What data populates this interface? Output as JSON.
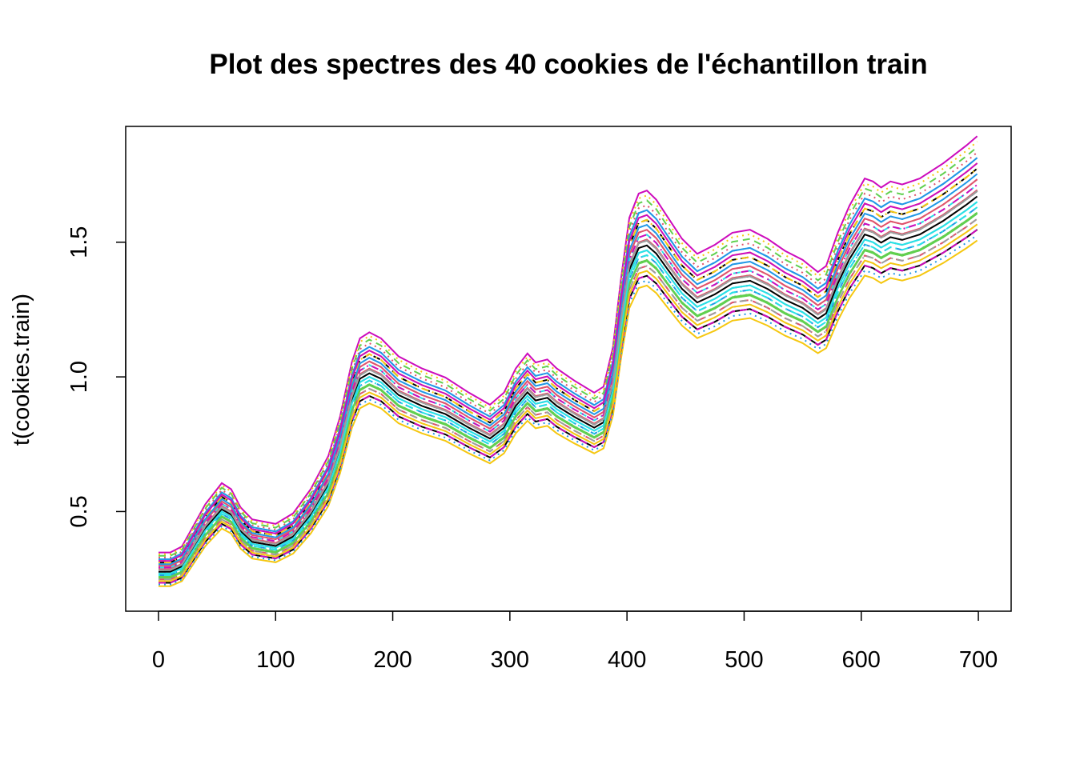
{
  "chart_data": {
    "type": "line",
    "title": "Plot des spectres des 40  cookies de l'échantillon train",
    "xlabel": "",
    "ylabel": "t(cookies.train)",
    "xlim": [
      -28,
      728
    ],
    "ylim": [
      0.13,
      1.93
    ],
    "x_ticks": [
      0,
      100,
      200,
      300,
      400,
      500,
      600,
      700
    ],
    "x_tick_labels": [
      "0",
      "100",
      "200",
      "300",
      "400",
      "500",
      "600",
      "700"
    ],
    "y_ticks": [
      0.5,
      1.0,
      1.5
    ],
    "y_tick_labels": [
      "0.5",
      "1.0",
      "1.5"
    ],
    "grid": false,
    "legend": "none",
    "n_series": 40,
    "palette": [
      "#000000",
      "#DF536B",
      "#61D04F",
      "#2297E6",
      "#28E2E5",
      "#CD0BBC",
      "#F5C710",
      "#9E9E9E"
    ],
    "line_styles": [
      "solid",
      "dashed",
      "dotted",
      "dotdash"
    ],
    "base_curve_x": [
      0,
      10,
      20,
      30,
      40,
      54,
      62,
      70,
      80,
      100,
      115,
      130,
      145,
      155,
      165,
      172,
      180,
      190,
      205,
      225,
      245,
      265,
      283,
      295,
      305,
      315,
      322,
      332,
      340,
      355,
      372,
      380,
      388,
      395,
      402,
      410,
      417,
      425,
      435,
      447,
      460,
      475,
      490,
      505,
      520,
      535,
      550,
      563,
      570,
      580,
      590,
      603,
      610,
      617,
      625,
      635,
      650,
      670,
      690,
      699
    ],
    "base_curve_y": [
      0.27,
      0.27,
      0.29,
      0.36,
      0.43,
      0.5,
      0.48,
      0.42,
      0.38,
      0.365,
      0.4,
      0.48,
      0.59,
      0.72,
      0.9,
      0.98,
      1.0,
      0.98,
      0.92,
      0.88,
      0.85,
      0.8,
      0.76,
      0.8,
      0.88,
      0.93,
      0.9,
      0.91,
      0.88,
      0.84,
      0.8,
      0.82,
      0.95,
      1.18,
      1.38,
      1.46,
      1.47,
      1.44,
      1.38,
      1.31,
      1.26,
      1.29,
      1.33,
      1.34,
      1.31,
      1.27,
      1.24,
      1.2,
      1.22,
      1.33,
      1.42,
      1.51,
      1.5,
      1.48,
      1.5,
      1.49,
      1.51,
      1.56,
      1.62,
      1.65
    ],
    "series_offset": [
      -0.06,
      0.05,
      -0.03,
      0.09,
      0.0,
      0.13,
      -0.08,
      0.02,
      0.07,
      -0.04,
      0.11,
      -0.01,
      0.04,
      -0.06,
      0.08,
      0.01,
      -0.02,
      0.1,
      0.03,
      -0.07,
      0.06,
      0.0,
      0.12,
      -0.05,
      0.02,
      0.05,
      -0.03,
      0.09,
      -0.01,
      0.04,
      0.07,
      -0.04,
      0.01,
      0.03,
      -0.02,
      0.06,
      0.0,
      0.08,
      -0.05,
      0.02
    ],
    "series_scale": [
      0.95,
      1.04,
      0.98,
      1.08,
      1.0,
      1.12,
      0.93,
      1.02,
      1.06,
      0.97,
      1.1,
      0.99,
      1.03,
      0.95,
      1.07,
      1.01,
      0.98,
      1.09,
      1.02,
      0.94,
      1.05,
      1.0,
      1.11,
      0.96,
      1.02,
      1.04,
      0.98,
      1.08,
      0.99,
      1.03,
      1.06,
      0.97,
      1.01,
      1.02,
      0.98,
      1.05,
      1.0,
      1.07,
      0.96,
      1.02
    ]
  }
}
